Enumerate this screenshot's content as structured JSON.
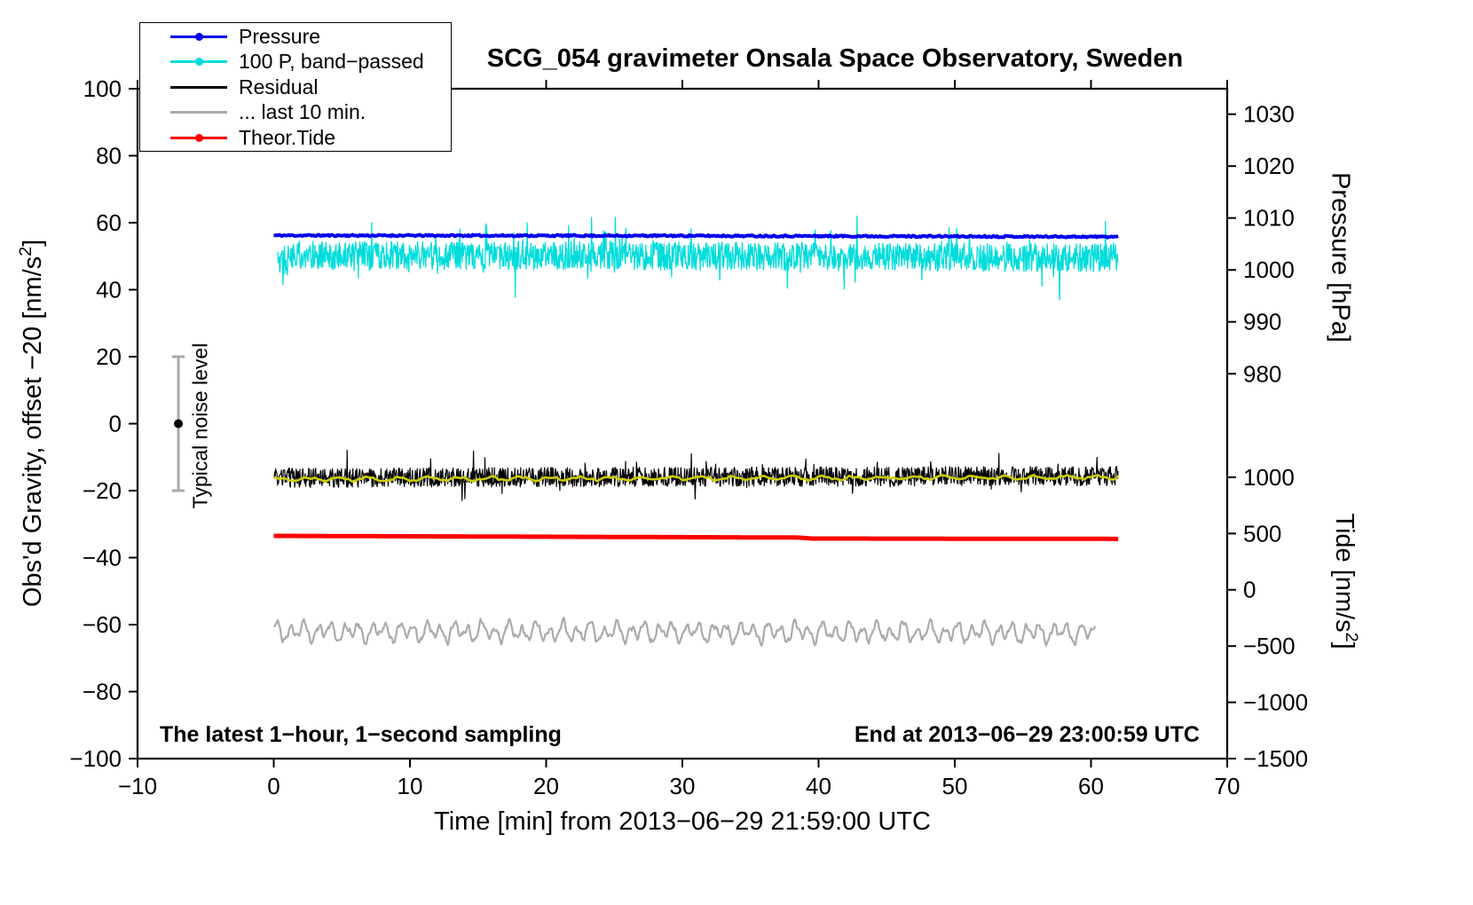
{
  "chart_data": {
    "type": "line",
    "title": "SCG_054 gravimeter Onsala Space Observatory, Sweden",
    "xlabel": "Time [min] from 2013−06−29 21:59:00 UTC",
    "ylabel_left": {
      "pre": "Obs'd Gravity, offset −20 [nm/s",
      "sup": "2",
      "post": "]"
    },
    "ylabel_right_pressure": "Pressure [hPa]",
    "ylabel_right_tide": {
      "pre": "Tide [nm/s",
      "sup": "2",
      "post": "]"
    },
    "xlim": [
      -10,
      70
    ],
    "ylim_left": [
      -100,
      100
    ],
    "x_ticks": [
      -10,
      0,
      10,
      20,
      30,
      40,
      50,
      60,
      70
    ],
    "y_ticks_left": [
      100,
      80,
      60,
      40,
      20,
      0,
      -20,
      -40,
      -60,
      -80,
      -100
    ],
    "right_axes": [
      {
        "name": "pressure",
        "ticks": [
          1030,
          1020,
          1010,
          1000,
          990,
          980
        ],
        "map": {
          "ref": 1000,
          "left_at_ref": 45.9,
          "left_per_unit": 1.55
        }
      },
      {
        "name": "tide",
        "ticks": [
          1000,
          500,
          0,
          -500,
          -1000,
          -1500
        ],
        "map": {
          "ref": 0,
          "left_at_ref": -49.6,
          "left_per_unit": 0.0336
        }
      }
    ],
    "grid": false,
    "legend": {
      "position": "top-left",
      "entries": [
        {
          "label": "Pressure",
          "color": "#0000ee",
          "marker": "line-dot"
        },
        {
          "label": "100 P, band−passed",
          "color": "#00dcdc",
          "marker": "line-dot"
        },
        {
          "label": "Residual",
          "color": "#000000",
          "marker": "line"
        },
        {
          "label": "... last 10 min.",
          "color": "#a9a9a9",
          "marker": "line"
        },
        {
          "label": "Theor.Tide",
          "color": "#ff0000",
          "marker": "line-dot"
        }
      ]
    },
    "annotations": {
      "sampling_note": "The latest 1−hour, 1−second sampling",
      "end_note": "End at 2013−06−29 23:00:59 UTC"
    },
    "noise_marker": {
      "x": -7,
      "center": 0,
      "half_range": 20,
      "label": "Typical noise level",
      "bar_color": "#aaaaaa",
      "dot_color": "#000000"
    },
    "series": [
      {
        "id": "pressure-band-passed",
        "label": "100 P, band−passed",
        "color": "#00dcdc",
        "width": 1.3,
        "x_start": 0.3,
        "x_end": 62,
        "dx": 0.035,
        "seed": 22,
        "anchors": [
          [
            0,
            50.3
          ],
          [
            30,
            50.0
          ],
          [
            62,
            49.5
          ]
        ],
        "noise_amp": 4.2,
        "spike_prob": 0.05,
        "spike_amp": 9,
        "approx_range": [
          35,
          67
        ]
      },
      {
        "id": "pressure",
        "label": "Pressure",
        "color": "#0000ee",
        "width": 4,
        "x_start": 0,
        "x_end": 62,
        "dx": 0.1,
        "seed": 11,
        "anchors": [
          [
            0,
            56.2
          ],
          [
            30,
            56.1
          ],
          [
            62,
            55.8
          ]
        ],
        "noise_amp": 0.25,
        "mean_pressure_hpa": 1006.5
      },
      {
        "id": "residual",
        "label": "Residual",
        "color": "#000000",
        "width": 1.2,
        "x_start": 0,
        "x_end": 62,
        "dx": 0.035,
        "seed": 33,
        "anchors": [
          [
            0,
            -16.2
          ],
          [
            30,
            -15.9
          ],
          [
            62,
            -15.6
          ]
        ],
        "noise_amp": 2.9,
        "spike_prob": 0.03,
        "spike_amp": 6
      },
      {
        "id": "residual-smoothed",
        "label": "Residual smoothed",
        "color": "#cccc00",
        "width": 2.6,
        "x_start": 0,
        "x_end": 62,
        "dx": 0.25,
        "seed": 44,
        "anchors": [
          [
            0,
            -16.6
          ],
          [
            30,
            -16.3
          ],
          [
            62,
            -16.0
          ]
        ],
        "noise_amp": 0.35,
        "wave": {
          "amps": [
            0.5
          ],
          "freqs": [
            0.45
          ],
          "phases": [
            0.7
          ]
        }
      },
      {
        "id": "theor-tide",
        "label": "Theor.Tide",
        "color": "#ff0000",
        "width": 5,
        "x_start": 0,
        "x_end": 62,
        "dx": 0.5,
        "seed": 55,
        "anchors": [
          [
            0,
            -33.5
          ],
          [
            38.5,
            -34.0
          ],
          [
            39.5,
            -34.3
          ],
          [
            62,
            -34.4
          ]
        ],
        "noise_amp": 0,
        "approx_tide_value": 480
      },
      {
        "id": "residual-last-10-min",
        "label": "... last 10 min.",
        "color": "#ababab",
        "width": 2.2,
        "x_start": 0,
        "x_end": 60.3,
        "dx": 0.06,
        "seed": 66,
        "anchors": [
          [
            0,
            -62.0
          ],
          [
            30,
            -62.2
          ],
          [
            60.3,
            -62.4
          ]
        ],
        "noise_amp": 0.5,
        "wave": {
          "amps": [
            2.1,
            1.2,
            0.7
          ],
          "freqs": [
            1.0,
            0.52,
            2.3
          ],
          "phases": [
            0.0,
            1.4,
            2.2
          ]
        }
      }
    ]
  }
}
